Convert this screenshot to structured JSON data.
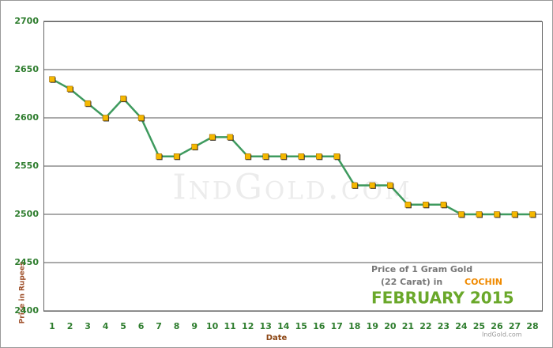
{
  "chart_data": {
    "type": "line",
    "watermark": "IndGold.com",
    "caption_line1": "Price of 1 Gram Gold",
    "caption_line2": "(22 Carat) in",
    "city": "COCHIN",
    "period": "FEBRUARY 2015",
    "credit": "IndGold.com",
    "x_label": "Date",
    "y_label": "Price in Rupees",
    "categories": [
      "1",
      "2",
      "3",
      "4",
      "5",
      "6",
      "7",
      "8",
      "9",
      "10",
      "11",
      "12",
      "13",
      "14",
      "15",
      "16",
      "17",
      "18",
      "19",
      "20",
      "21",
      "22",
      "23",
      "24",
      "25",
      "26",
      "27",
      "28"
    ],
    "values": [
      2640,
      2630,
      2615,
      2600,
      2620,
      2600,
      2560,
      2560,
      2570,
      2580,
      2580,
      2560,
      2560,
      2560,
      2560,
      2560,
      2560,
      2530,
      2530,
      2530,
      2510,
      2510,
      2510,
      2500,
      2500,
      2500,
      2500,
      2500
    ],
    "color": "#3e9a5e",
    "marker_color": "#f5b800",
    "ylim": [
      2400,
      2700
    ],
    "yticks": [
      2400,
      2450,
      2500,
      2550,
      2600,
      2650,
      2700
    ],
    "grid": true
  }
}
